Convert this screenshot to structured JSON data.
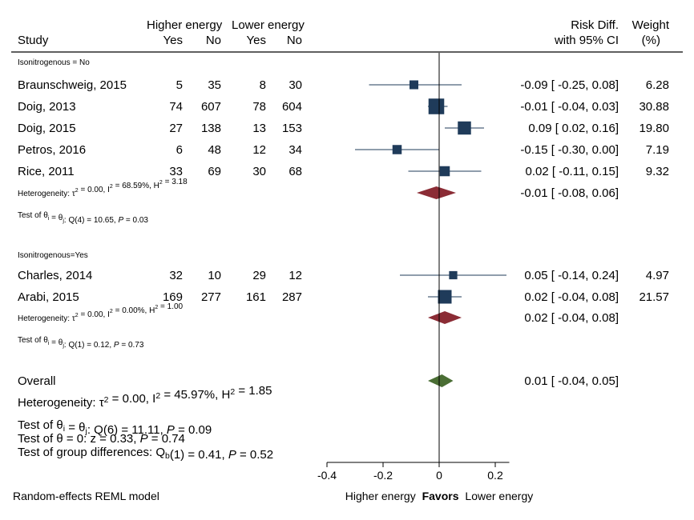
{
  "chart_data": {
    "type": "forest",
    "header": {
      "group1": "Higher energy",
      "group2": "Lower energy",
      "study": "Study",
      "yes": "Yes",
      "no": "No",
      "effect_line1": "Risk Diff.",
      "effect_line2": "with 95% CI",
      "weight_line1": "Weight",
      "weight_line2": "(%)"
    },
    "subgroups": [
      {
        "label": "Isonitrogenous = No",
        "studies": [
          {
            "name": "Braunschweig, 2015",
            "g1_yes": "5",
            "g1_no": "35",
            "g2_yes": "8",
            "g2_no": "30",
            "rd": -0.09,
            "lo": -0.25,
            "hi": 0.08,
            "ci_text": "-0.09 [ -0.25,  0.08]",
            "weight": 6.28,
            "weight_text": "6.28"
          },
          {
            "name": "Doig, 2013",
            "g1_yes": "74",
            "g1_no": "607",
            "g2_yes": "78",
            "g2_no": "604",
            "rd": -0.01,
            "lo": -0.04,
            "hi": 0.03,
            "ci_text": "-0.01 [ -0.04,  0.03]",
            "weight": 30.88,
            "weight_text": "30.88"
          },
          {
            "name": "Doig, 2015",
            "g1_yes": "27",
            "g1_no": "138",
            "g2_yes": "13",
            "g2_no": "153",
            "rd": 0.09,
            "lo": 0.02,
            "hi": 0.16,
            "ci_text": "0.09 [  0.02,  0.16]",
            "weight": 19.8,
            "weight_text": "19.80"
          },
          {
            "name": "Petros, 2016",
            "g1_yes": "6",
            "g1_no": "48",
            "g2_yes": "12",
            "g2_no": "34",
            "rd": -0.15,
            "lo": -0.3,
            "hi": 0.0,
            "ci_text": "-0.15 [ -0.30,  0.00]",
            "weight": 7.19,
            "weight_text": "7.19"
          },
          {
            "name": "Rice, 2011",
            "g1_yes": "33",
            "g1_no": "69",
            "g2_yes": "30",
            "g2_no": "68",
            "rd": 0.02,
            "lo": -0.11,
            "hi": 0.15,
            "ci_text": "0.02 [ -0.11,  0.15]",
            "weight": 9.32,
            "weight_text": "9.32"
          }
        ],
        "pooled": {
          "rd": -0.01,
          "lo": -0.08,
          "hi": 0.06,
          "ci_text": "-0.01 [ -0.08,  0.06]"
        },
        "heterogeneity": "Heterogeneity: τ² = 0.00, I² = 68.59%, H² = 3.18",
        "test": "Test of θi = θj: Q(4) = 10.65, P = 0.03"
      },
      {
        "label": "Isonitrogenous=Yes",
        "studies": [
          {
            "name": "Charles, 2014",
            "g1_yes": "32",
            "g1_no": "10",
            "g2_yes": "29",
            "g2_no": "12",
            "rd": 0.05,
            "lo": -0.14,
            "hi": 0.24,
            "ci_text": "0.05 [ -0.14,  0.24]",
            "weight": 4.97,
            "weight_text": "4.97"
          },
          {
            "name": "Arabi, 2015",
            "g1_yes": "169",
            "g1_no": "277",
            "g2_yes": "161",
            "g2_no": "287",
            "rd": 0.02,
            "lo": -0.04,
            "hi": 0.08,
            "ci_text": "0.02 [ -0.04,  0.08]",
            "weight": 21.57,
            "weight_text": "21.57"
          }
        ],
        "pooled": {
          "rd": 0.02,
          "lo": -0.04,
          "hi": 0.08,
          "ci_text": "0.02 [ -0.04,  0.08]"
        },
        "heterogeneity": "Heterogeneity: τ² = 0.00, I² = 0.00%, H² = 1.00",
        "test": "Test of θi = θj: Q(1) = 0.12, P = 0.73"
      }
    ],
    "overall": {
      "label": "Overall",
      "rd": 0.01,
      "lo": -0.04,
      "hi": 0.05,
      "ci_text": "0.01 [ -0.04,  0.05]",
      "heterogeneity": "Heterogeneity: τ² = 0.00, I² = 45.97%, H² = 1.85",
      "test1": "Test of θi = θj: Q(6) = 11.11, P = 0.09",
      "test2": "Test of θ = 0: z = 0.33, P = 0.74",
      "test3": "Test of group differences: Qb(1) = 0.41, P = 0.52"
    },
    "xlim": [
      -0.4,
      0.25
    ],
    "xticks": [
      -0.4,
      -0.2,
      0,
      0.2
    ],
    "xtick_labels": [
      "-0.4",
      "-0.2",
      "0",
      "0.2"
    ],
    "xlabel_left": "Higher energy",
    "xlabel_mid": "Favors",
    "xlabel_right": "Lower energy",
    "footer": "Random-effects REML model",
    "colors": {
      "study_marker": "#1f3b5a",
      "subgroup_diamond": "#8b2c35",
      "overall_diamond": "#4a6e34",
      "ci_line": "#1f3b5a"
    }
  }
}
